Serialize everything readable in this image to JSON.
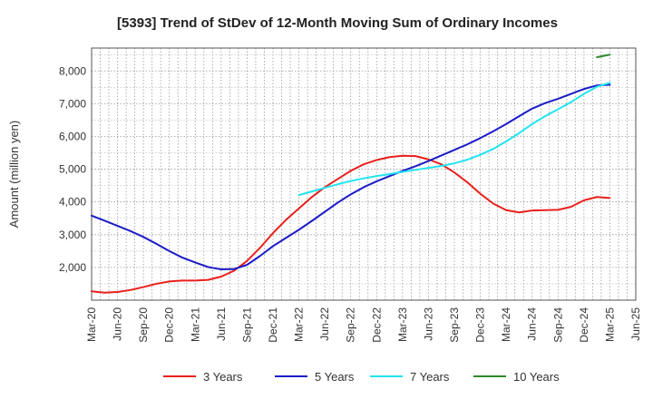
{
  "chart_data": {
    "type": "line",
    "title": "[5393]  Trend of StDev of 12-Month Moving Sum of Ordinary Incomes",
    "xlabel": "",
    "ylabel": "Amount (million yen)",
    "xlim": [
      0,
      21
    ],
    "ylim": [
      1000,
      8700
    ],
    "x_tick_labels": [
      "Mar-20",
      "Jun-20",
      "Sep-20",
      "Dec-20",
      "Mar-21",
      "Jun-21",
      "Sep-21",
      "Dec-21",
      "Mar-22",
      "Jun-22",
      "Sep-22",
      "Dec-22",
      "Mar-23",
      "Jun-23",
      "Sep-23",
      "Dec-23",
      "Mar-24",
      "Jun-24",
      "Sep-24",
      "Dec-24",
      "Mar-25",
      "Jun-25"
    ],
    "y_ticks": [
      2000,
      3000,
      4000,
      5000,
      6000,
      7000,
      8000
    ],
    "y_tick_labels": [
      "2,000",
      "3,000",
      "4,000",
      "5,000",
      "6,000",
      "7,000",
      "8,000"
    ],
    "series": [
      {
        "name": "3 Years",
        "color": "#e8201c",
        "points": [
          [
            0,
            1270
          ],
          [
            0.5,
            1230
          ],
          [
            1,
            1250
          ],
          [
            1.5,
            1310
          ],
          [
            2,
            1400
          ],
          [
            2.5,
            1500
          ],
          [
            3,
            1570
          ],
          [
            3.5,
            1600
          ],
          [
            4,
            1600
          ],
          [
            4.5,
            1620
          ],
          [
            5,
            1720
          ],
          [
            5.5,
            1900
          ],
          [
            6,
            2200
          ],
          [
            6.5,
            2600
          ],
          [
            7,
            3050
          ],
          [
            7.5,
            3450
          ],
          [
            8,
            3800
          ],
          [
            8.5,
            4150
          ],
          [
            9,
            4450
          ],
          [
            9.5,
            4700
          ],
          [
            10,
            4950
          ],
          [
            10.5,
            5150
          ],
          [
            11,
            5280
          ],
          [
            11.5,
            5370
          ],
          [
            12,
            5410
          ],
          [
            12.5,
            5400
          ],
          [
            13,
            5300
          ],
          [
            13.5,
            5150
          ],
          [
            14,
            4900
          ],
          [
            14.5,
            4600
          ],
          [
            15,
            4250
          ],
          [
            15.5,
            3950
          ],
          [
            16,
            3750
          ],
          [
            16.5,
            3680
          ],
          [
            17,
            3740
          ],
          [
            17.5,
            3750
          ],
          [
            18,
            3760
          ],
          [
            18.5,
            3850
          ],
          [
            19,
            4050
          ],
          [
            19.5,
            4150
          ],
          [
            20,
            4120
          ]
        ]
      },
      {
        "name": "5 Years",
        "color": "#1c1cc8",
        "points": [
          [
            0,
            3580
          ],
          [
            0.5,
            3430
          ],
          [
            1,
            3270
          ],
          [
            1.5,
            3110
          ],
          [
            2,
            2930
          ],
          [
            2.5,
            2720
          ],
          [
            3,
            2500
          ],
          [
            3.5,
            2300
          ],
          [
            4,
            2150
          ],
          [
            4.5,
            2010
          ],
          [
            5,
            1940
          ],
          [
            5.5,
            1950
          ],
          [
            6,
            2080
          ],
          [
            6.5,
            2350
          ],
          [
            7,
            2650
          ],
          [
            7.5,
            2900
          ],
          [
            8,
            3150
          ],
          [
            8.5,
            3420
          ],
          [
            9,
            3700
          ],
          [
            9.5,
            3980
          ],
          [
            10,
            4230
          ],
          [
            10.5,
            4450
          ],
          [
            11,
            4630
          ],
          [
            11.5,
            4790
          ],
          [
            12,
            4950
          ],
          [
            12.5,
            5090
          ],
          [
            13,
            5250
          ],
          [
            13.5,
            5420
          ],
          [
            14,
            5590
          ],
          [
            14.5,
            5760
          ],
          [
            15,
            5950
          ],
          [
            15.5,
            6160
          ],
          [
            16,
            6380
          ],
          [
            16.5,
            6620
          ],
          [
            17,
            6850
          ],
          [
            17.5,
            7020
          ],
          [
            18,
            7150
          ],
          [
            18.5,
            7300
          ],
          [
            19,
            7450
          ],
          [
            19.5,
            7560
          ],
          [
            20,
            7580
          ]
        ]
      },
      {
        "name": "7 Years",
        "color": "#22e4f0",
        "points": [
          [
            8,
            4210
          ],
          [
            8.5,
            4320
          ],
          [
            9,
            4430
          ],
          [
            9.5,
            4540
          ],
          [
            10,
            4640
          ],
          [
            10.5,
            4720
          ],
          [
            11,
            4790
          ],
          [
            11.5,
            4850
          ],
          [
            12,
            4920
          ],
          [
            12.5,
            4980
          ],
          [
            13,
            5040
          ],
          [
            13.5,
            5100
          ],
          [
            14,
            5180
          ],
          [
            14.5,
            5290
          ],
          [
            15,
            5440
          ],
          [
            15.5,
            5620
          ],
          [
            16,
            5850
          ],
          [
            16.5,
            6100
          ],
          [
            17,
            6380
          ],
          [
            17.5,
            6620
          ],
          [
            18,
            6830
          ],
          [
            18.5,
            7050
          ],
          [
            19,
            7300
          ],
          [
            19.5,
            7520
          ],
          [
            20,
            7640
          ]
        ]
      },
      {
        "name": "10 Years",
        "color": "#2e8b2e",
        "points": [
          [
            19.5,
            8420
          ],
          [
            20,
            8500
          ]
        ]
      }
    ]
  }
}
